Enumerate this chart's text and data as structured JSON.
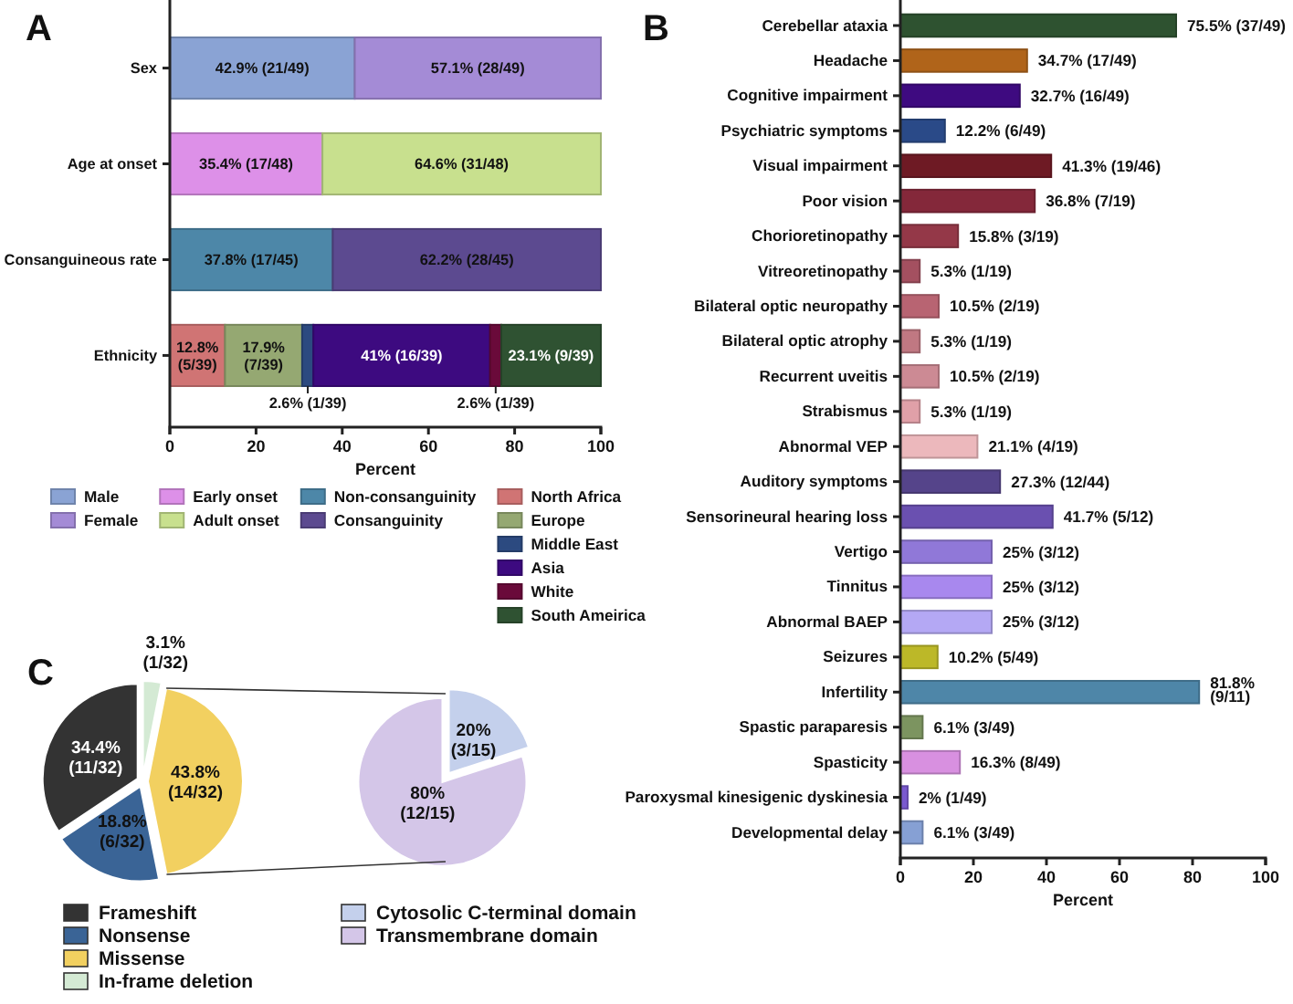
{
  "chart_data": [
    {
      "type": "bar",
      "title": "A",
      "orientation": "horizontal",
      "stacked": true,
      "categories": [
        "Sex",
        "Age at onset",
        "Consanguineous rate",
        "Ethnicity"
      ],
      "xlabel": "Percent",
      "xlim": [
        0,
        100
      ],
      "xticks": [
        0,
        20,
        40,
        60,
        80,
        100
      ],
      "legend": "bottom",
      "series": [
        {
          "name": "Male",
          "color": "#8aa3d4",
          "values": [
            42.9,
            null,
            null,
            null
          ],
          "value_labels": [
            "42.9% (21/49)",
            null,
            null,
            null
          ]
        },
        {
          "name": "Female",
          "color": "#a48bd6",
          "values": [
            57.1,
            null,
            null,
            null
          ],
          "value_labels": [
            "57.1% (28/49)",
            null,
            null,
            null
          ]
        },
        {
          "name": "Early onset",
          "color": "#dd90e8",
          "values": [
            null,
            35.4,
            null,
            null
          ],
          "value_labels": [
            null,
            "35.4% (17/48)",
            null,
            null
          ]
        },
        {
          "name": "Adult onset",
          "color": "#c8e08e",
          "values": [
            null,
            64.6,
            null,
            null
          ],
          "value_labels": [
            null,
            "64.6% (31/48)",
            null,
            null
          ]
        },
        {
          "name": "Non-consanguinity",
          "color": "#4d87a8",
          "values": [
            null,
            null,
            37.8,
            null
          ],
          "value_labels": [
            null,
            null,
            "37.8% (17/45)",
            null
          ]
        },
        {
          "name": "Consanguinity",
          "color": "#5c4a90",
          "values": [
            null,
            null,
            62.2,
            null
          ],
          "value_labels": [
            null,
            null,
            "62.2% (28/45)",
            null
          ]
        },
        {
          "name": "North Africa",
          "color": "#d07474",
          "values": [
            null,
            null,
            null,
            12.8
          ],
          "value_labels": [
            null,
            null,
            null,
            "12.8% (5/39)"
          ]
        },
        {
          "name": "Europe",
          "color": "#95a872",
          "values": [
            null,
            null,
            null,
            17.9
          ],
          "value_labels": [
            null,
            null,
            null,
            "17.9% (7/39)"
          ]
        },
        {
          "name": "Middle East",
          "color": "#2c4a80",
          "values": [
            null,
            null,
            null,
            2.6
          ],
          "value_labels": [
            null,
            null,
            null,
            "2.6% (1/39)"
          ]
        },
        {
          "name": "Asia",
          "color": "#3d0a80",
          "values": [
            null,
            null,
            null,
            41
          ],
          "value_labels": [
            null,
            null,
            null,
            "41% (16/39)"
          ]
        },
        {
          "name": "White",
          "color": "#6a0a3a",
          "values": [
            null,
            null,
            null,
            2.6
          ],
          "value_labels": [
            null,
            null,
            null,
            "2.6% (1/39)"
          ]
        },
        {
          "name": "South Ameirica",
          "color": "#2f5232",
          "values": [
            null,
            null,
            null,
            23.1
          ],
          "value_labels": [
            null,
            null,
            null,
            "23.1% (9/39)"
          ]
        }
      ]
    },
    {
      "type": "bar",
      "title": "B",
      "orientation": "horizontal",
      "categories": [
        "Cerebellar ataxia",
        "Headache",
        "Cognitive impairment",
        "Psychiatric symptoms",
        "Visual impairment",
        "Poor vision",
        "Chorioretinopathy",
        "Vitreoretinopathy",
        "Bilateral optic neuropathy",
        "Bilateral optic atrophy",
        "Recurrent uveitis",
        "Strabismus",
        "Abnormal VEP",
        "Auditory symptoms",
        "Sensorineural hearing loss",
        "Vertigo",
        "Tinnitus",
        "Abnormal BAEP",
        "Seizures",
        "Infertility",
        "Spastic paraparesis",
        "Spasticity",
        "Paroxysmal kinesigenic dyskinesia",
        "Developmental delay"
      ],
      "xlabel": "Percent",
      "xlim": [
        0,
        100
      ],
      "xticks": [
        0,
        20,
        40,
        60,
        80,
        100
      ],
      "values": [
        75.5,
        34.7,
        32.7,
        12.2,
        41.3,
        36.8,
        15.8,
        5.3,
        10.5,
        5.3,
        10.5,
        5.3,
        21.1,
        27.3,
        41.7,
        25,
        25,
        25,
        10.2,
        81.8,
        6.1,
        16.3,
        2,
        6.1
      ],
      "colors": [
        "#2e5230",
        "#b0641a",
        "#3e0a80",
        "#2a4a88",
        "#6e1a24",
        "#84283a",
        "#943848",
        "#a45060",
        "#b86472",
        "#c07882",
        "#cc8a94",
        "#e0a0a8",
        "#ecb8bc",
        "#55448a",
        "#6a50b0",
        "#9078d8",
        "#a888ee",
        "#b4a8f4",
        "#bcb828",
        "#4e86a8",
        "#7c9460",
        "#d890e0",
        "#7a5ad0",
        "#86a0d4"
      ],
      "value_labels": [
        "75.5% (37/49)",
        "34.7% (17/49)",
        "32.7% (16/49)",
        "12.2% (6/49)",
        "41.3% (19/46)",
        "36.8% (7/19)",
        "15.8% (3/19)",
        "5.3% (1/19)",
        "10.5% (2/19)",
        "5.3% (1/19)",
        "10.5% (2/19)",
        "5.3% (1/19)",
        "21.1% (4/19)",
        "27.3% (12/44)",
        "41.7% (5/12)",
        "25% (3/12)",
        "25% (3/12)",
        "25% (3/12)",
        "10.2% (5/49)",
        "81.8% (9/11)",
        "6.1% (3/49)",
        "16.3% (8/49)",
        "2% (1/49)",
        "6.1% (3/49)"
      ]
    },
    {
      "type": "pie",
      "title": "C",
      "categories": [
        "Frameshift",
        "Nonsense",
        "Missense",
        "In-frame deletion"
      ],
      "values": [
        34.4,
        18.8,
        43.8,
        3.1
      ],
      "colors": [
        "#333333",
        "#3a6496",
        "#f2d060",
        "#d4ead4"
      ],
      "value_labels": [
        "34.4% (11/32)",
        "18.8% (6/32)",
        "43.8% (14/32)",
        "3.1% (1/32)"
      ],
      "legend": "bottom"
    },
    {
      "type": "pie",
      "categories": [
        "Cytosolic C-terminal domain",
        "Transmembrane domain"
      ],
      "values": [
        20,
        80
      ],
      "colors": [
        "#c4d0ec",
        "#d4c6e8"
      ],
      "value_labels": [
        "20% (3/15)",
        "80% (12/15)"
      ],
      "legend": "bottom"
    }
  ]
}
